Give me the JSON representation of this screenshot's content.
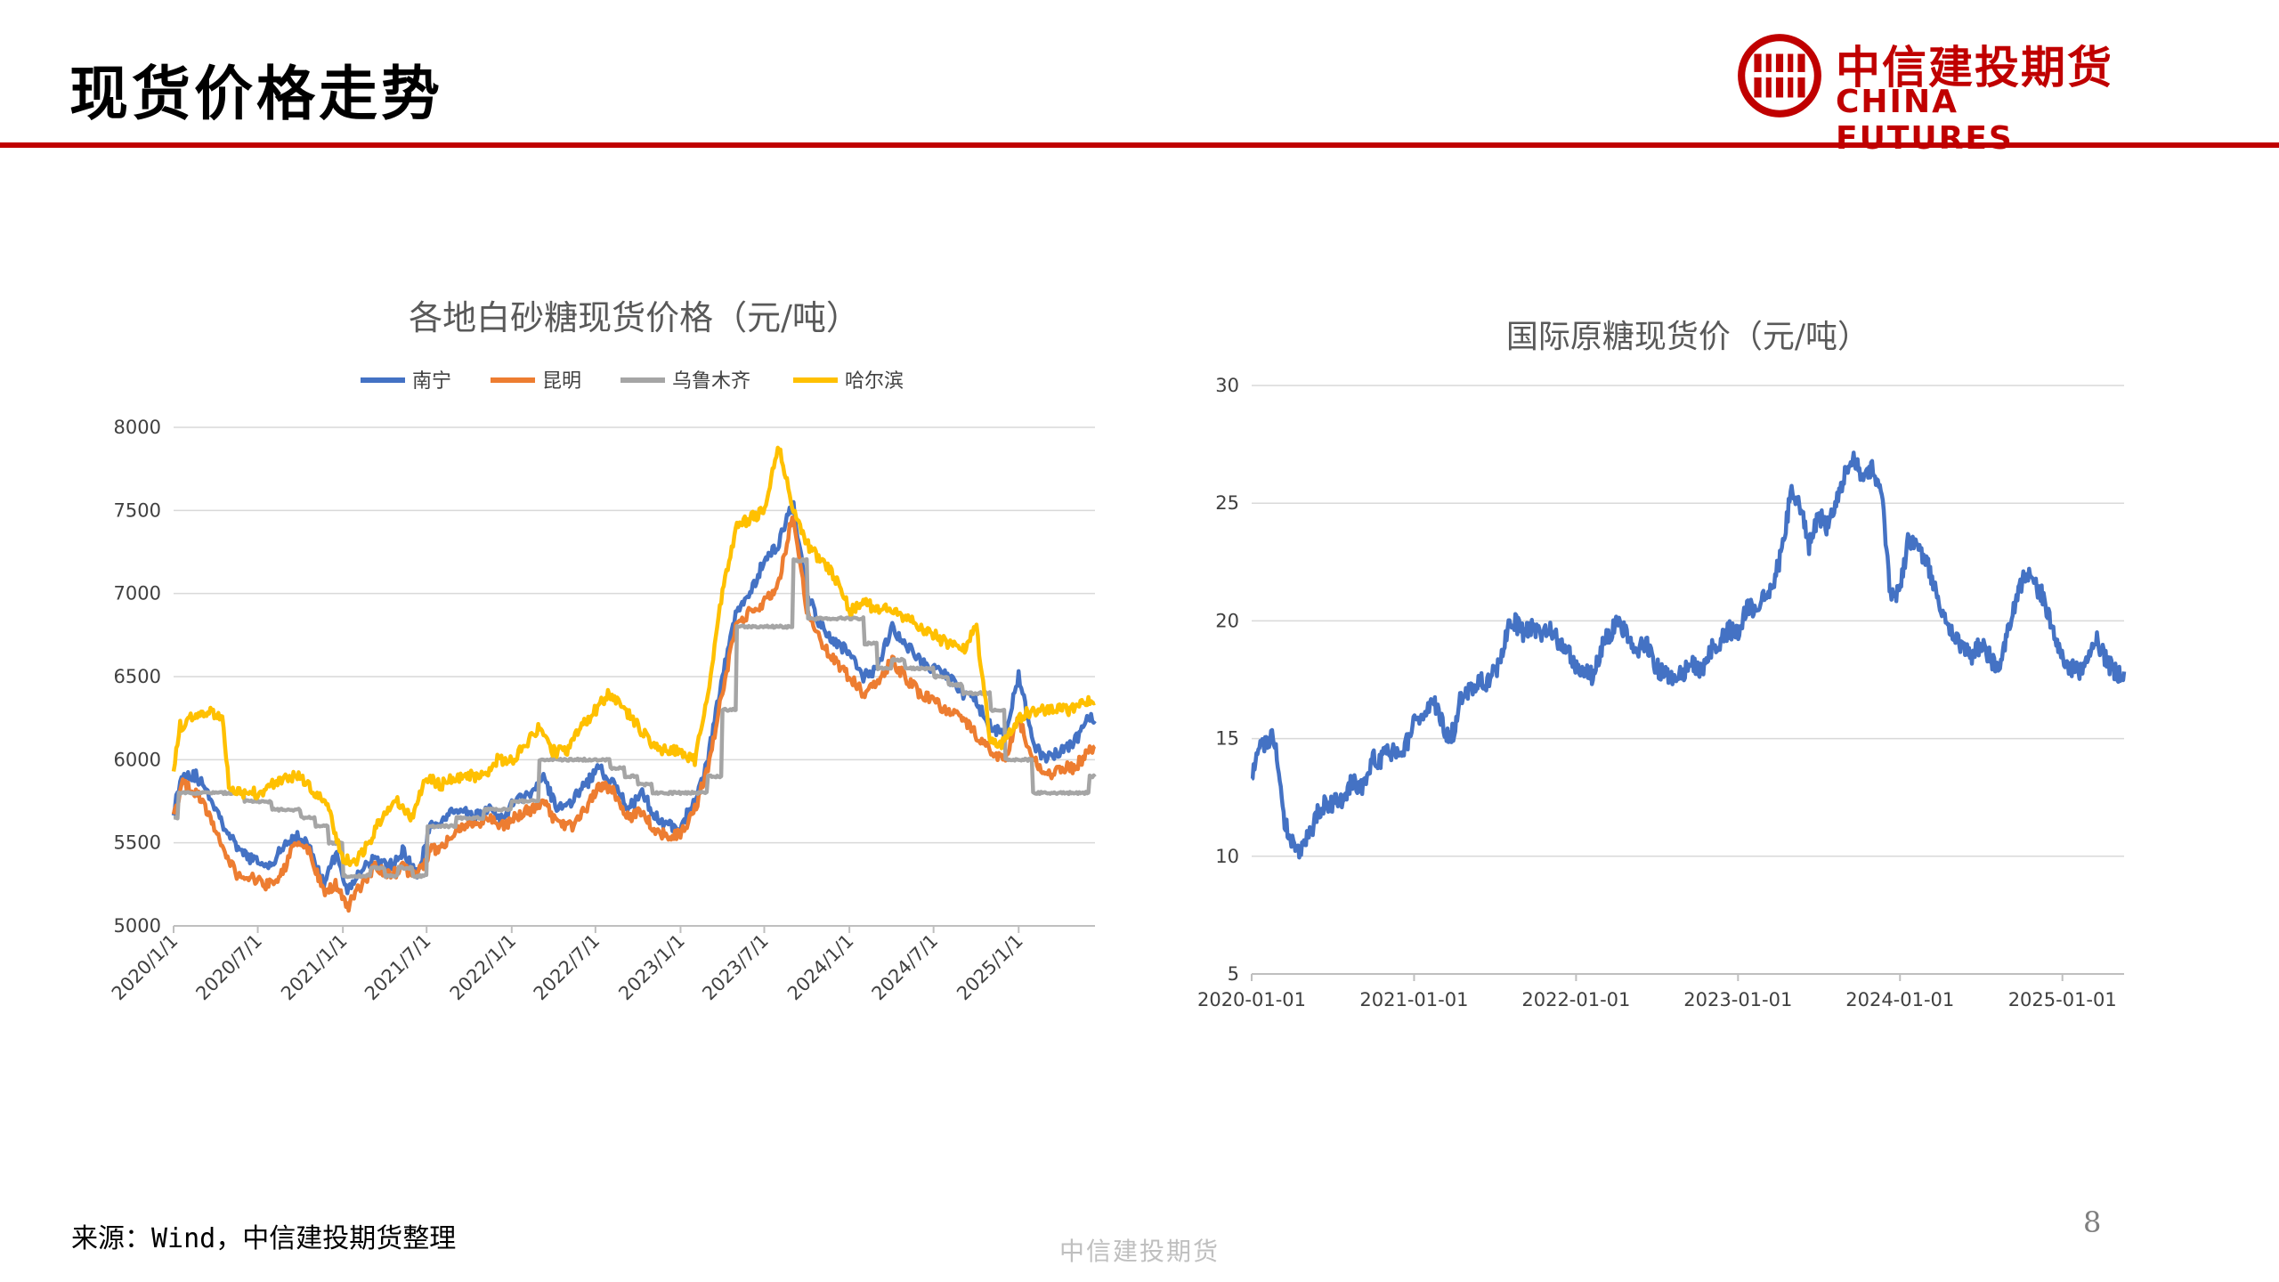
{
  "header": {
    "title": "现货价格走势"
  },
  "brand": {
    "cn": "中信建投期货",
    "en": "CHINA FUTURES",
    "color": "#c00000"
  },
  "footer": {
    "source": "来源：Wind，中信建投期货整理",
    "brand": "中信建投期货",
    "page": "8"
  },
  "chart_data": [
    {
      "type": "line",
      "title": "各地白砂糖现货价格（元/吨）",
      "xlabel": "",
      "ylabel": "",
      "ylim": [
        5000,
        8000
      ],
      "yticks": [
        5000,
        5500,
        6000,
        6500,
        7000,
        7500,
        8000
      ],
      "xticks": [
        "2020/1/1",
        "2020/7/1",
        "2021/1/1",
        "2021/7/1",
        "2022/1/1",
        "2022/7/1",
        "2023/1/1",
        "2023/7/1",
        "2024/1/1",
        "2024/7/1",
        "2025/1/1"
      ],
      "xrange": [
        "2020-01-01",
        "2025-06-15"
      ],
      "grid": true,
      "legend": "top",
      "series": [
        {
          "name": "南宁",
          "color": "#4472c4",
          "dates": [
            "2020-01-01",
            "2020-01-20",
            "2020-02-20",
            "2020-03-20",
            "2020-04-20",
            "2020-05-20",
            "2020-06-20",
            "2020-07-20",
            "2020-08-20",
            "2020-09-20",
            "2020-10-20",
            "2020-11-20",
            "2020-12-20",
            "2021-01-10",
            "2021-02-10",
            "2021-03-10",
            "2021-04-10",
            "2021-05-10",
            "2021-06-10",
            "2021-07-10",
            "2021-08-10",
            "2021-09-10",
            "2021-10-10",
            "2021-11-10",
            "2021-12-10",
            "2022-01-10",
            "2022-02-10",
            "2022-03-10",
            "2022-04-10",
            "2022-05-10",
            "2022-06-10",
            "2022-07-10",
            "2022-08-10",
            "2022-09-10",
            "2022-10-10",
            "2022-11-10",
            "2022-12-10",
            "2023-01-01",
            "2023-02-01",
            "2023-03-01",
            "2023-04-01",
            "2023-05-01",
            "2023-06-01",
            "2023-07-01",
            "2023-08-01",
            "2023-09-01",
            "2023-10-01",
            "2023-11-01",
            "2023-12-01",
            "2024-01-01",
            "2024-02-01",
            "2024-03-01",
            "2024-04-01",
            "2024-05-01",
            "2024-06-01",
            "2024-07-01",
            "2024-08-01",
            "2024-09-01",
            "2024-10-01",
            "2024-11-01",
            "2024-12-01",
            "2025-01-01",
            "2025-02-01",
            "2025-03-01",
            "2025-04-01",
            "2025-05-01",
            "2025-06-01"
          ],
          "values": [
            5700,
            5920,
            5900,
            5780,
            5600,
            5450,
            5400,
            5350,
            5450,
            5550,
            5480,
            5250,
            5450,
            5200,
            5350,
            5400,
            5350,
            5450,
            5300,
            5600,
            5650,
            5700,
            5650,
            5700,
            5650,
            5750,
            5800,
            5900,
            5700,
            5750,
            5850,
            5950,
            5850,
            5700,
            5800,
            5650,
            5600,
            5600,
            5750,
            6000,
            6500,
            6900,
            7000,
            7200,
            7300,
            7550,
            7000,
            6800,
            6700,
            6650,
            6500,
            6550,
            6800,
            6700,
            6600,
            6550,
            6500,
            6400,
            6350,
            6200,
            6150,
            6500,
            6100,
            6000,
            6050,
            6100,
            6250
          ]
        },
        {
          "name": "昆明",
          "color": "#ed7d31",
          "dates": [
            "2020-01-01",
            "2020-01-20",
            "2020-02-20",
            "2020-03-20",
            "2020-04-20",
            "2020-05-20",
            "2020-06-20",
            "2020-07-20",
            "2020-08-20",
            "2020-09-20",
            "2020-10-20",
            "2020-11-20",
            "2020-12-20",
            "2021-01-10",
            "2021-02-10",
            "2021-03-10",
            "2021-04-10",
            "2021-05-10",
            "2021-06-10",
            "2021-07-10",
            "2021-08-10",
            "2021-09-10",
            "2021-10-10",
            "2021-11-10",
            "2021-12-10",
            "2022-01-10",
            "2022-02-10",
            "2022-03-10",
            "2022-04-10",
            "2022-05-10",
            "2022-06-10",
            "2022-07-10",
            "2022-08-10",
            "2022-09-10",
            "2022-10-10",
            "2022-11-10",
            "2022-12-10",
            "2023-01-01",
            "2023-02-01",
            "2023-03-01",
            "2023-04-01",
            "2023-05-01",
            "2023-06-01",
            "2023-07-01",
            "2023-08-01",
            "2023-09-01",
            "2023-10-01",
            "2023-11-01",
            "2023-12-01",
            "2024-01-01",
            "2024-02-01",
            "2024-03-01",
            "2024-04-01",
            "2024-05-01",
            "2024-06-01",
            "2024-07-01",
            "2024-08-01",
            "2024-09-01",
            "2024-10-01",
            "2024-11-01",
            "2024-12-01",
            "2025-01-01",
            "2025-02-01",
            "2025-03-01",
            "2025-04-01",
            "2025-05-01",
            "2025-06-01"
          ],
          "values": [
            5650,
            5850,
            5800,
            5650,
            5450,
            5300,
            5280,
            5250,
            5300,
            5500,
            5450,
            5200,
            5250,
            5100,
            5250,
            5350,
            5300,
            5350,
            5300,
            5450,
            5500,
            5600,
            5600,
            5650,
            5600,
            5650,
            5700,
            5750,
            5600,
            5600,
            5700,
            5850,
            5800,
            5650,
            5700,
            5550,
            5550,
            5550,
            5700,
            5950,
            6400,
            6800,
            6900,
            6950,
            7050,
            7500,
            6900,
            6700,
            6600,
            6500,
            6400,
            6450,
            6600,
            6500,
            6400,
            6350,
            6300,
            6250,
            6150,
            6050,
            6000,
            6250,
            6000,
            5900,
            5950,
            5950,
            6050
          ]
        },
        {
          "name": "乌鲁木齐",
          "color": "#a5a5a5",
          "dates": [
            "2020-01-01",
            "2020-01-10",
            "2020-05-01",
            "2020-06-01",
            "2020-08-01",
            "2020-10-01",
            "2020-11-01",
            "2020-12-01",
            "2021-01-01",
            "2021-02-01",
            "2021-03-01",
            "2021-04-01",
            "2021-05-01",
            "2021-06-01",
            "2021-07-01",
            "2021-08-01",
            "2021-09-01",
            "2021-10-01",
            "2021-11-01",
            "2021-12-01",
            "2022-01-01",
            "2022-02-01",
            "2022-03-01",
            "2022-04-01",
            "2022-05-01",
            "2022-06-01",
            "2022-07-01",
            "2022-08-01",
            "2022-09-01",
            "2022-10-01",
            "2022-11-01",
            "2022-12-01",
            "2023-01-01",
            "2023-02-01",
            "2023-03-01",
            "2023-04-01",
            "2023-05-01",
            "2023-06-01",
            "2023-07-01",
            "2023-08-01",
            "2023-09-01",
            "2023-10-01",
            "2023-11-01",
            "2023-12-01",
            "2024-01-01",
            "2024-02-01",
            "2024-03-01",
            "2024-04-01",
            "2024-05-01",
            "2024-06-01",
            "2024-07-01",
            "2024-08-01",
            "2024-09-01",
            "2024-10-01",
            "2024-11-01",
            "2024-12-01",
            "2025-01-01",
            "2025-02-01",
            "2025-03-01",
            "2025-04-01",
            "2025-05-01",
            "2025-06-01"
          ],
          "values": [
            5650,
            5800,
            5800,
            5750,
            5700,
            5650,
            5600,
            5500,
            5300,
            5300,
            5350,
            5300,
            5350,
            5300,
            5600,
            5600,
            5650,
            5650,
            5700,
            5700,
            5750,
            5750,
            6000,
            6000,
            6000,
            6000,
            6000,
            5950,
            5900,
            5850,
            5800,
            5800,
            5800,
            5800,
            5900,
            6300,
            6800,
            6800,
            6800,
            6800,
            7200,
            6850,
            6850,
            6850,
            6850,
            6700,
            6550,
            6600,
            6550,
            6550,
            6500,
            6450,
            6400,
            6400,
            6300,
            6000,
            6000,
            5800,
            5800,
            5800,
            5800,
            5900
          ]
        },
        {
          "name": "哈尔滨",
          "color": "#ffc000",
          "dates": [
            "2020-01-01",
            "2020-01-15",
            "2020-03-01",
            "2020-04-15",
            "2020-05-01",
            "2020-06-01",
            "2020-07-01",
            "2020-08-01",
            "2020-09-01",
            "2020-10-01",
            "2020-11-01",
            "2020-12-01",
            "2021-01-01",
            "2021-02-01",
            "2021-03-01",
            "2021-04-01",
            "2021-05-01",
            "2021-06-01",
            "2021-07-01",
            "2021-08-01",
            "2021-09-01",
            "2021-10-01",
            "2021-11-01",
            "2021-12-01",
            "2022-01-01",
            "2022-02-01",
            "2022-03-01",
            "2022-04-01",
            "2022-05-01",
            "2022-06-01",
            "2022-07-01",
            "2022-08-01",
            "2022-09-01",
            "2022-10-01",
            "2022-11-01",
            "2022-12-01",
            "2023-01-01",
            "2023-02-01",
            "2023-03-01",
            "2023-04-01",
            "2023-05-01",
            "2023-06-01",
            "2023-07-01",
            "2023-08-01",
            "2023-09-01",
            "2023-10-01",
            "2023-11-01",
            "2023-12-01",
            "2024-01-01",
            "2024-02-01",
            "2024-03-01",
            "2024-04-01",
            "2024-05-01",
            "2024-06-01",
            "2024-07-01",
            "2024-08-01",
            "2024-09-01",
            "2024-10-01",
            "2024-11-01",
            "2024-12-01",
            "2025-01-01",
            "2025-02-01",
            "2025-03-01",
            "2025-04-01",
            "2025-05-01",
            "2025-06-01"
          ],
          "values": [
            5950,
            6200,
            6300,
            6250,
            5800,
            5800,
            5800,
            5850,
            5900,
            5900,
            5800,
            5700,
            5400,
            5400,
            5500,
            5700,
            5750,
            5650,
            5900,
            5850,
            5900,
            5900,
            5900,
            6000,
            6000,
            6100,
            6200,
            6050,
            6050,
            6200,
            6300,
            6400,
            6300,
            6200,
            6100,
            6050,
            6050,
            6000,
            6400,
            7000,
            7400,
            7450,
            7500,
            7900,
            7500,
            7300,
            7200,
            7100,
            6900,
            6950,
            6900,
            6900,
            6850,
            6800,
            6750,
            6700,
            6650,
            6800,
            6100,
            6100,
            6250,
            6300,
            6300,
            6300,
            6300,
            6350
          ]
        }
      ]
    },
    {
      "type": "line",
      "title": "国际原糖现货价（元/吨）",
      "xlabel": "",
      "ylabel": "",
      "ylim": [
        5,
        30
      ],
      "yticks": [
        5,
        10,
        15,
        20,
        25,
        30
      ],
      "xticks": [
        "2020-01-01",
        "2021-01-01",
        "2022-01-01",
        "2023-01-01",
        "2024-01-01",
        "2025-01-01"
      ],
      "xrange": [
        "2020-01-01",
        "2025-05-20"
      ],
      "grid": true,
      "legend": "none",
      "series": [
        {
          "color": "#4472c4",
          "dates": [
            "2020-01-01",
            "2020-01-15",
            "2020-02-01",
            "2020-02-15",
            "2020-03-01",
            "2020-03-15",
            "2020-04-01",
            "2020-04-15",
            "2020-05-01",
            "2020-05-15",
            "2020-06-01",
            "2020-06-15",
            "2020-07-01",
            "2020-08-01",
            "2020-08-15",
            "2020-09-01",
            "2020-10-01",
            "2020-10-15",
            "2020-11-01",
            "2020-12-01",
            "2020-12-15",
            "2021-01-01",
            "2021-01-20",
            "2021-02-15",
            "2021-03-01",
            "2021-03-15",
            "2021-04-01",
            "2021-04-15",
            "2021-05-01",
            "2021-06-01",
            "2021-06-15",
            "2021-07-01",
            "2021-07-15",
            "2021-08-01",
            "2021-08-15",
            "2021-09-01",
            "2021-09-15",
            "2021-10-01",
            "2021-10-15",
            "2021-11-01",
            "2021-12-01",
            "2021-12-15",
            "2022-01-01",
            "2022-01-20",
            "2022-02-10",
            "2022-03-01",
            "2022-03-20",
            "2022-04-10",
            "2022-05-01",
            "2022-05-20",
            "2022-06-10",
            "2022-07-01",
            "2022-07-20",
            "2022-08-10",
            "2022-09-01",
            "2022-09-20",
            "2022-10-10",
            "2022-11-01",
            "2022-11-20",
            "2022-12-10",
            "2023-01-01",
            "2023-01-20",
            "2023-02-10",
            "2023-03-01",
            "2023-03-20",
            "2023-04-10",
            "2023-05-01",
            "2023-05-20",
            "2023-06-10",
            "2023-07-01",
            "2023-07-20",
            "2023-08-10",
            "2023-09-01",
            "2023-09-20",
            "2023-10-10",
            "2023-11-01",
            "2023-11-20",
            "2023-12-10",
            "2024-01-01",
            "2024-01-20",
            "2024-02-10",
            "2024-03-01",
            "2024-03-20",
            "2024-04-10",
            "2024-05-01",
            "2024-05-20",
            "2024-06-10",
            "2024-07-01",
            "2024-07-20",
            "2024-08-10",
            "2024-09-01",
            "2024-09-20",
            "2024-10-10",
            "2024-11-01",
            "2024-11-20",
            "2024-12-10",
            "2025-01-01",
            "2025-01-20",
            "2025-02-10",
            "2025-03-01",
            "2025-03-20",
            "2025-04-10",
            "2025-05-01",
            "2025-05-20"
          ],
          "values": [
            13.3,
            14.5,
            14.8,
            15.2,
            14.0,
            11.5,
            10.5,
            10.2,
            10.8,
            11.0,
            12.0,
            12.3,
            12.2,
            12.6,
            13.2,
            12.8,
            14.2,
            14.0,
            14.5,
            14.3,
            14.8,
            15.6,
            16.0,
            16.5,
            16.0,
            15.0,
            15.3,
            16.8,
            17.0,
            17.5,
            17.3,
            17.8,
            18.2,
            19.8,
            20.0,
            19.5,
            19.6,
            19.7,
            19.2,
            19.8,
            18.8,
            18.6,
            18.0,
            17.8,
            17.6,
            19.0,
            19.5,
            20.0,
            19.2,
            18.8,
            19.0,
            18.0,
            17.8,
            17.5,
            17.8,
            18.2,
            17.9,
            18.8,
            19.0,
            19.6,
            19.5,
            20.5,
            20.6,
            21.0,
            21.5,
            23.0,
            25.5,
            25.0,
            23.2,
            24.5,
            24.0,
            25.0,
            26.3,
            26.8,
            26.0,
            26.5,
            25.5,
            21.0,
            21.3,
            23.5,
            23.0,
            22.5,
            21.5,
            20.0,
            19.5,
            18.8,
            18.5,
            19.0,
            18.5,
            18.0,
            19.5,
            21.0,
            22.0,
            21.5,
            21.0,
            19.5,
            18.5,
            18.0,
            17.8,
            18.5,
            19.2,
            18.3,
            17.8,
            17.6
          ]
        }
      ]
    }
  ]
}
